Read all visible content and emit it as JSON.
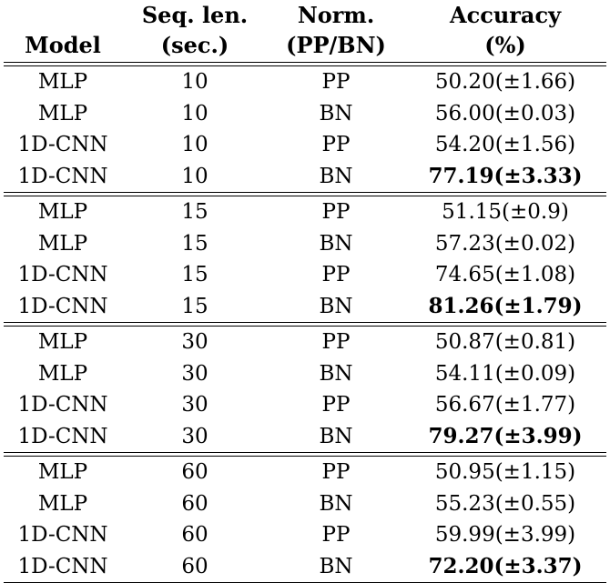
{
  "table": {
    "headers": [
      [
        "",
        "Model"
      ],
      [
        "Seq. len.",
        "(sec.)"
      ],
      [
        "Norm.",
        "(PP/BN)"
      ],
      [
        "Accuracy",
        "(%)"
      ]
    ],
    "groups": [
      {
        "rows": [
          {
            "model": "MLP",
            "seq": "10",
            "norm": "PP",
            "acc": "50.20(±1.66)",
            "best": false
          },
          {
            "model": "MLP",
            "seq": "10",
            "norm": "BN",
            "acc": "56.00(±0.03)",
            "best": false
          },
          {
            "model": "1D-CNN",
            "seq": "10",
            "norm": "PP",
            "acc": "54.20(±1.56)",
            "best": false
          },
          {
            "model": "1D-CNN",
            "seq": "10",
            "norm": "BN",
            "acc": "77.19(±3.33)",
            "best": true
          }
        ]
      },
      {
        "rows": [
          {
            "model": "MLP",
            "seq": "15",
            "norm": "PP",
            "acc": "51.15(±0.9)",
            "best": false
          },
          {
            "model": "MLP",
            "seq": "15",
            "norm": "BN",
            "acc": "57.23(±0.02)",
            "best": false
          },
          {
            "model": "1D-CNN",
            "seq": "15",
            "norm": "PP",
            "acc": "74.65(±1.08)",
            "best": false
          },
          {
            "model": "1D-CNN",
            "seq": "15",
            "norm": "BN",
            "acc": "81.26(±1.79)",
            "best": true
          }
        ]
      },
      {
        "rows": [
          {
            "model": "MLP",
            "seq": "30",
            "norm": "PP",
            "acc": "50.87(±0.81)",
            "best": false
          },
          {
            "model": "MLP",
            "seq": "30",
            "norm": "BN",
            "acc": "54.11(±0.09)",
            "best": false
          },
          {
            "model": "1D-CNN",
            "seq": "30",
            "norm": "PP",
            "acc": "56.67(±1.77)",
            "best": false
          },
          {
            "model": "1D-CNN",
            "seq": "30",
            "norm": "BN",
            "acc": "79.27(±3.99)",
            "best": true
          }
        ]
      },
      {
        "rows": [
          {
            "model": "MLP",
            "seq": "60",
            "norm": "PP",
            "acc": "50.95(±1.15)",
            "best": false
          },
          {
            "model": "MLP",
            "seq": "60",
            "norm": "BN",
            "acc": "55.23(±0.55)",
            "best": false
          },
          {
            "model": "1D-CNN",
            "seq": "60",
            "norm": "PP",
            "acc": "59.99(±3.99)",
            "best": false
          },
          {
            "model": "1D-CNN",
            "seq": "60",
            "norm": "BN",
            "acc": "72.20(±3.37)",
            "best": true
          }
        ]
      }
    ]
  }
}
